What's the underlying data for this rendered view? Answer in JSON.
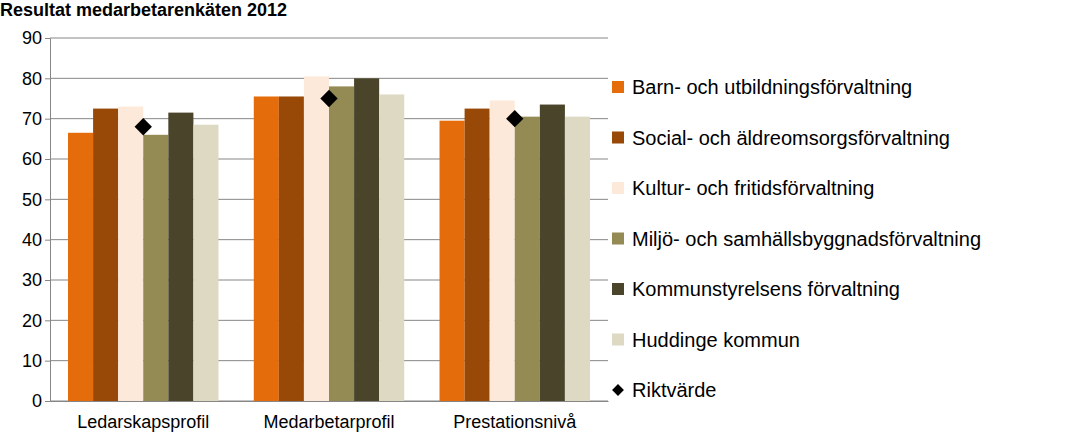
{
  "chart_data": {
    "type": "bar",
    "title": "Resultat medarbetarenkäten 2012",
    "categories": [
      "Ledarskapsprofil",
      "Medarbetarprofil",
      "Prestationsnivå"
    ],
    "series": [
      {
        "name": "Barn- och utbildningsförvaltning",
        "color": "#e46c0a",
        "values": [
          66.5,
          75.5,
          69.5
        ]
      },
      {
        "name": "Social- och äldreomsorgsförvaltning",
        "color": "#984807",
        "values": [
          72.5,
          75.5,
          72.5
        ]
      },
      {
        "name": "Kultur- och fritidsförvaltning",
        "color": "#fde9d9",
        "values": [
          73,
          80.5,
          74.5
        ]
      },
      {
        "name": "Miljö- och samhällsbyggnadsförvaltning",
        "color": "#948a54",
        "values": [
          66,
          78,
          70.5
        ]
      },
      {
        "name": "Kommunstyrelsens förvaltning",
        "color": "#4a452a",
        "values": [
          71.5,
          80,
          73.5
        ]
      },
      {
        "name": "Huddinge kommun",
        "color": "#ddd9c3",
        "values": [
          68.5,
          76,
          70.5
        ]
      },
      {
        "name": "Riktvärde",
        "color": "#000000",
        "type": "scatter",
        "marker": "diamond",
        "values": [
          68,
          75,
          70
        ]
      }
    ],
    "ylim": [
      0,
      90
    ],
    "yticks": [
      0,
      10,
      20,
      30,
      40,
      50,
      60,
      70,
      80,
      90
    ],
    "grid": true,
    "legend": "right"
  }
}
